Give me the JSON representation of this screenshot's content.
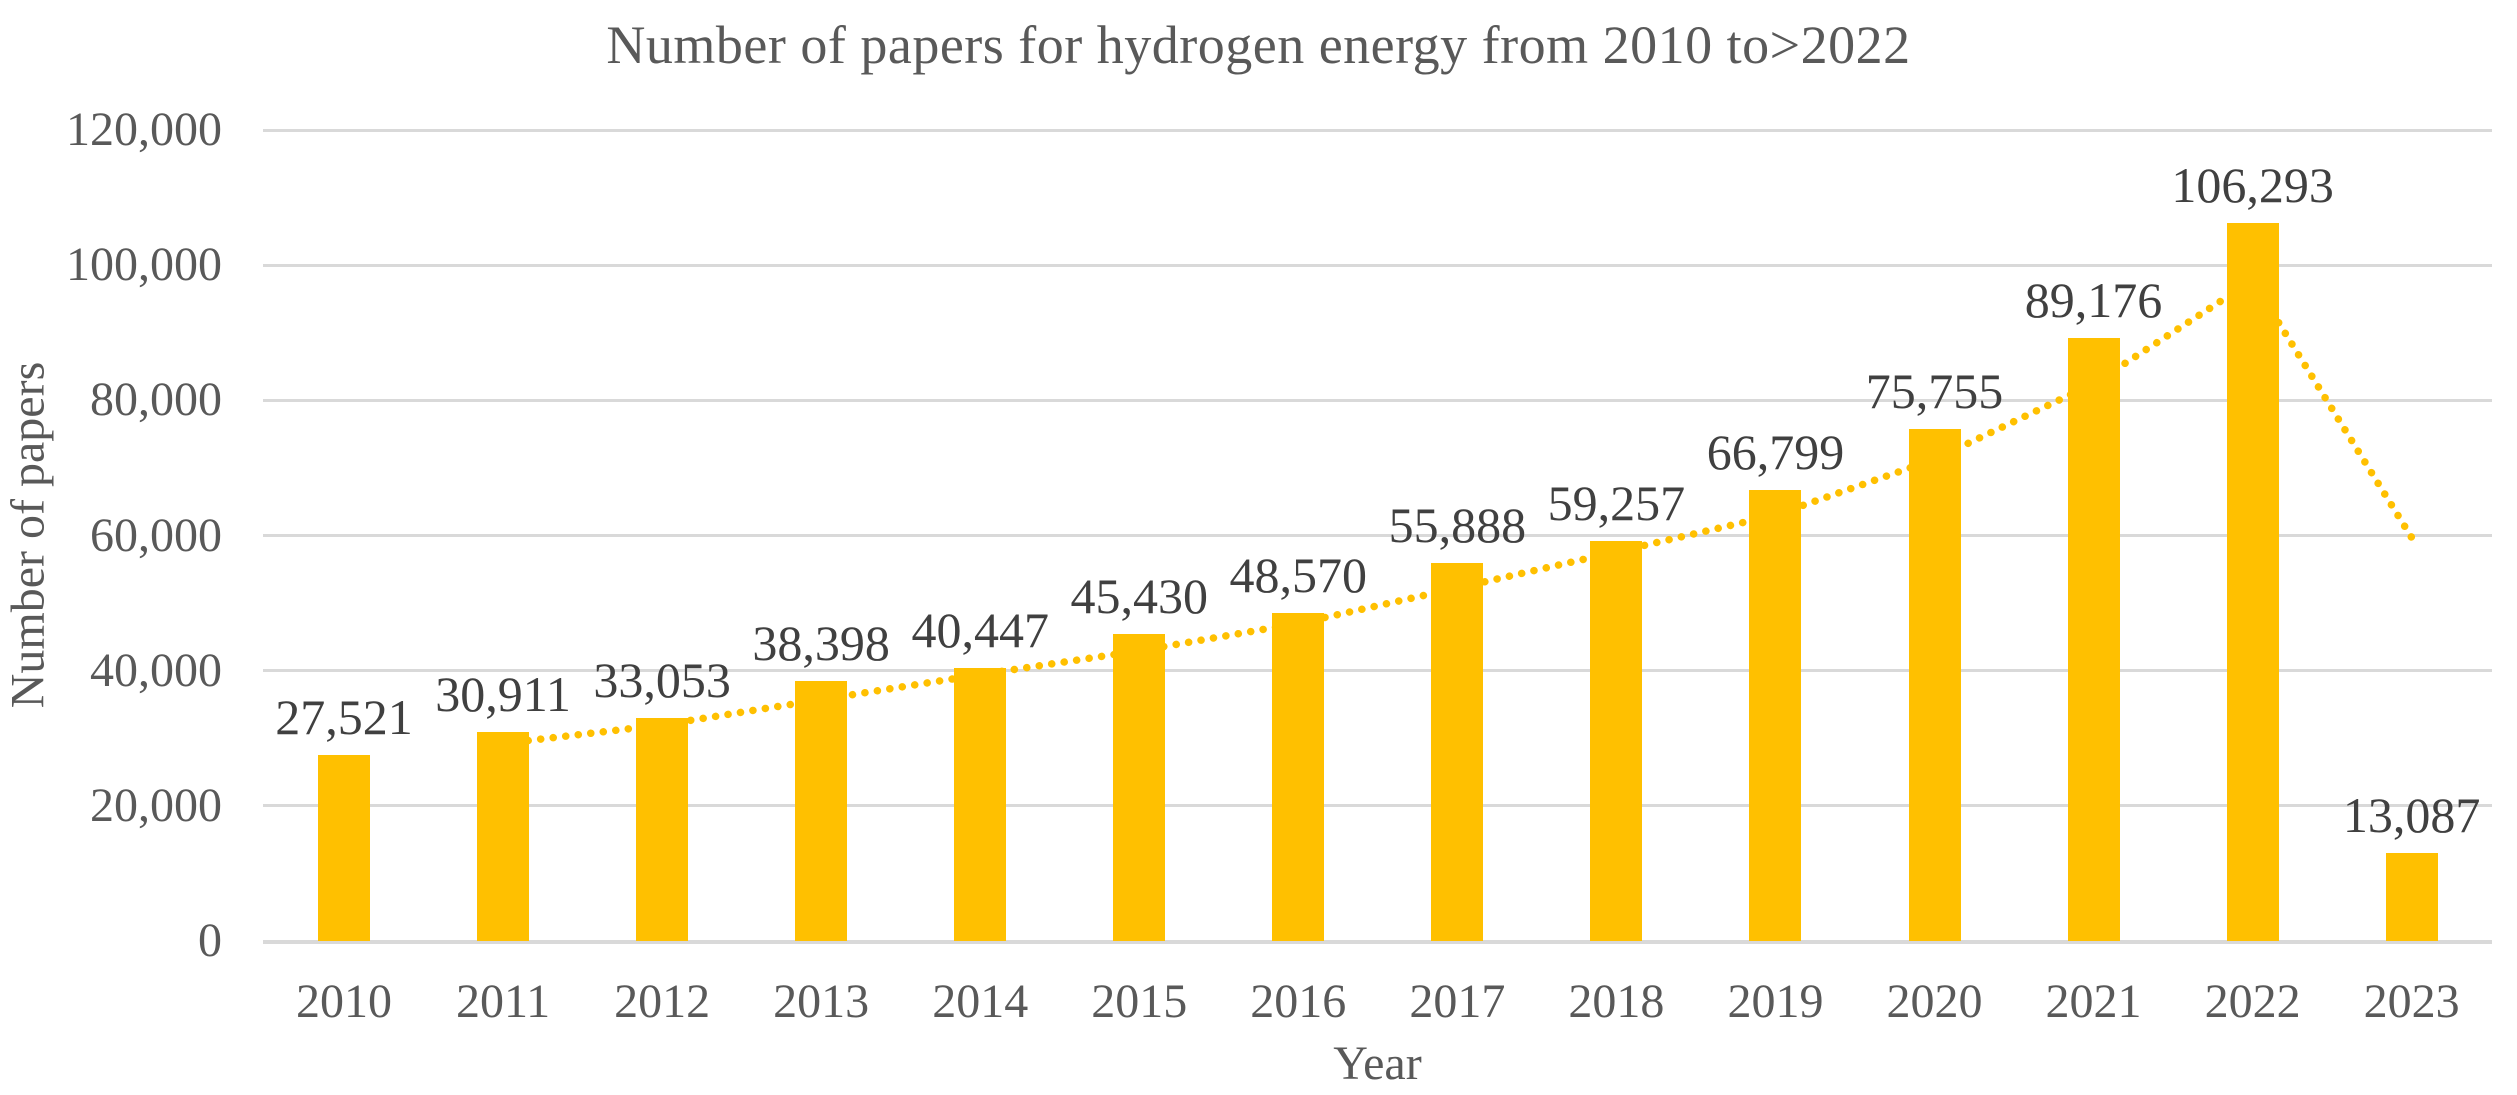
{
  "chart_data": {
    "type": "bar",
    "title": "Number of papers for hydrogen energy from 2010 to>2022",
    "xlabel": "Year",
    "ylabel": "Number of papers",
    "categories": [
      "2010",
      "2011",
      "2012",
      "2013",
      "2014",
      "2015",
      "2016",
      "2017",
      "2018",
      "2019",
      "2020",
      "2021",
      "2022",
      "2023"
    ],
    "values": [
      27521,
      30911,
      33053,
      38398,
      40447,
      45430,
      48570,
      55888,
      59257,
      66799,
      75755,
      89176,
      106293,
      13087
    ],
    "bar_labels": [
      "27,521",
      "30,911",
      "33,053",
      "38,398",
      "40,447",
      "45,430",
      "48,570",
      "55,888",
      "59,257",
      "66,799",
      "75,755",
      "89,176",
      "106,293",
      "13,087"
    ],
    "ylim": [
      0,
      120000
    ],
    "ytick_values": [
      0,
      20000,
      40000,
      60000,
      80000,
      100000,
      120000
    ],
    "ytick_labels": [
      "0",
      "20,000",
      "40,000",
      "60,000",
      "80,000",
      "100,000",
      "120,000"
    ],
    "grid": "horizontal",
    "legend": "none",
    "trendline": {
      "type": "moving_average_2_period",
      "style": "dotted",
      "x": [
        "2011",
        "2012",
        "2013",
        "2014",
        "2015",
        "2016",
        "2017",
        "2018",
        "2019",
        "2020",
        "2021",
        "2022",
        "2023"
      ],
      "values": [
        29216,
        31982,
        35726,
        39423,
        42939,
        47000,
        52229,
        57573,
        63028,
        71277,
        82466,
        97735,
        59690
      ]
    },
    "colors": {
      "bar": "#FFC000",
      "trendline": "#FFC000",
      "gridline": "#D9D9D9",
      "axis_text": "#595959",
      "label_text": "#404040",
      "background": "#FFFFFF"
    }
  }
}
